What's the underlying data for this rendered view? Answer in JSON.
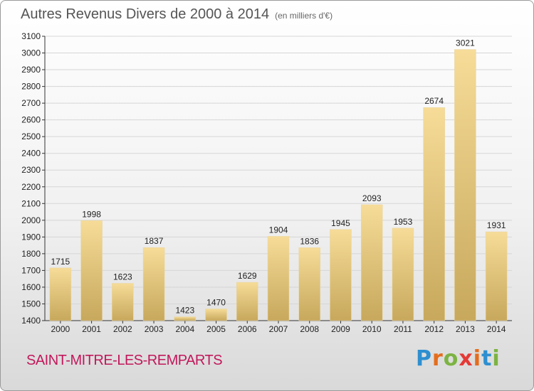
{
  "header": {
    "title": "Autres Revenus Divers de 2000 à 2014",
    "unit_note": "(en milliers d'€)"
  },
  "footer": {
    "city": "SAINT-MITRE-LES-REMPARTS",
    "logo": "Proxiti"
  },
  "colors": {
    "bar_light": "#f6dc98",
    "bar_dark": "#c7a85c",
    "grid": "#d6d6d6",
    "axis": "#333333",
    "city": "#c2185b"
  },
  "chart_data": {
    "type": "bar",
    "title": "Autres Revenus Divers de 2000 à 2014",
    "categories": [
      "2000",
      "2001",
      "2002",
      "2003",
      "2004",
      "2005",
      "2006",
      "2007",
      "2008",
      "2009",
      "2010",
      "2011",
      "2012",
      "2013",
      "2014"
    ],
    "values": [
      1715,
      1998,
      1623,
      1837,
      1423,
      1470,
      1629,
      1904,
      1836,
      1945,
      2093,
      1953,
      2674,
      3021,
      1931
    ],
    "ylim": [
      1400,
      3100
    ],
    "yticks": [
      1400,
      1500,
      1600,
      1700,
      1800,
      1900,
      2000,
      2100,
      2200,
      2300,
      2400,
      2500,
      2600,
      2700,
      2800,
      2900,
      3000,
      3100
    ],
    "grid": true,
    "data_labels": true
  }
}
